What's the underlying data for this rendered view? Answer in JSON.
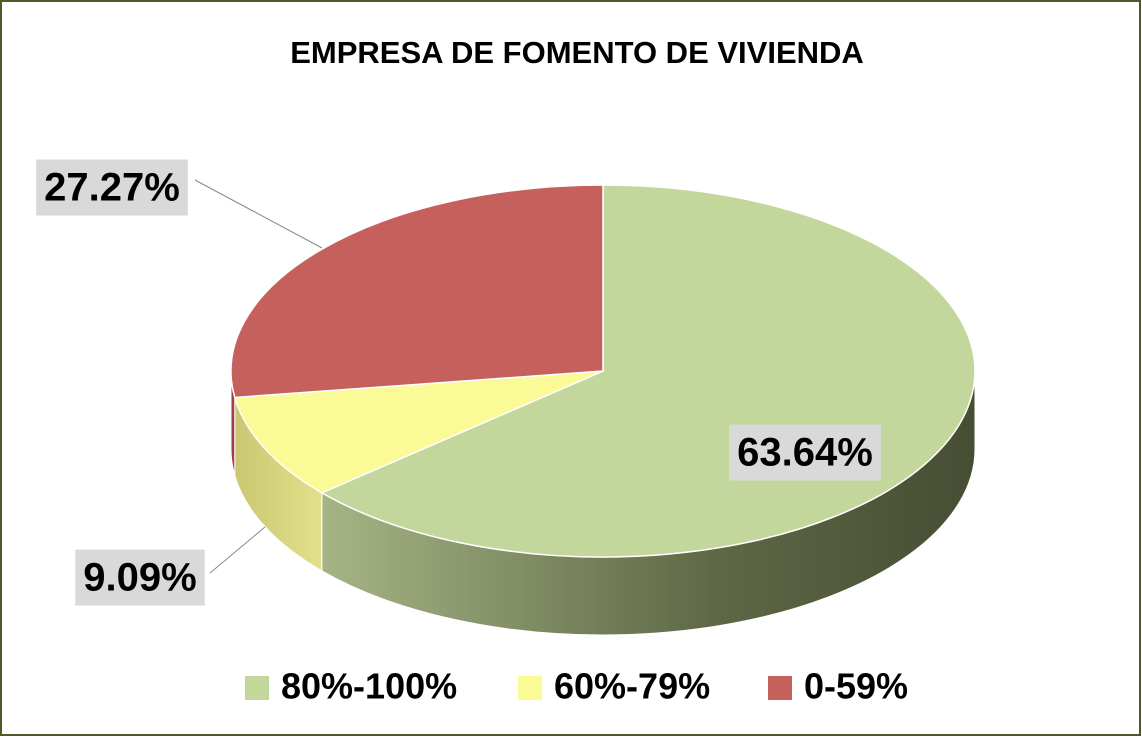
{
  "chart_data": {
    "type": "pie3d",
    "title": "EMPRESA DE FOMENTO DE VIVIENDA",
    "categories": [
      "80%-100%",
      "60%-79%",
      "0-59%"
    ],
    "values": [
      63.64,
      9.09,
      27.27
    ],
    "value_labels": [
      "63.64%",
      "9.09%",
      "27.27%"
    ],
    "colors": [
      "#c3d69b",
      "#fafa96",
      "#c6605d"
    ],
    "legend": "bottom"
  }
}
